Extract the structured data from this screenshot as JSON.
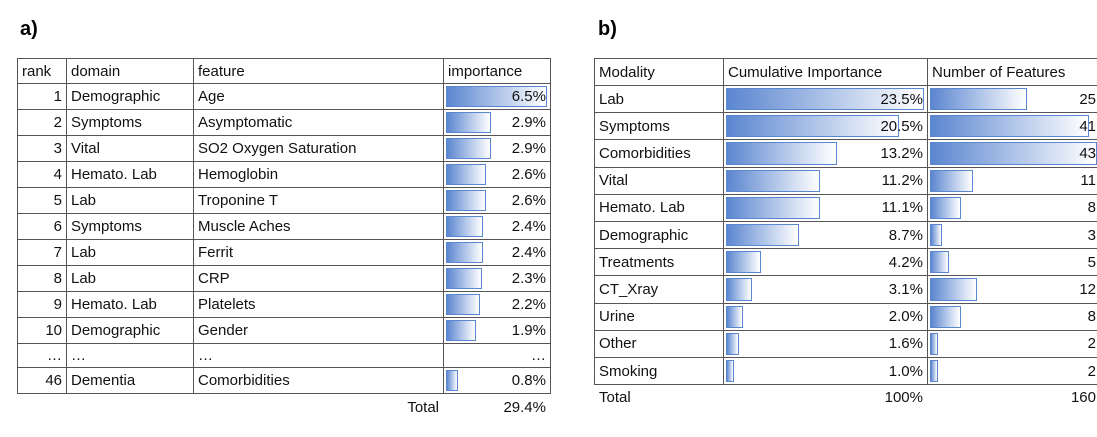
{
  "panels": [
    {
      "label": "a)",
      "table": {
        "header": [
          "rank",
          "domain",
          "feature",
          "importance"
        ],
        "rows": [
          [
            "1",
            "Demographic",
            "Age",
            "6.5%"
          ],
          [
            "2",
            "Symptoms",
            "Asymptomatic",
            "2.9%"
          ],
          [
            "3",
            "Vital",
            "SO2 Oxygen Saturation",
            "2.9%"
          ],
          [
            "4",
            "Hemato. Lab",
            "Hemoglobin",
            "2.6%"
          ],
          [
            "5",
            "Lab",
            "Troponine T",
            "2.6%"
          ],
          [
            "6",
            "Symptoms",
            "Muscle Aches",
            "2.4%"
          ],
          [
            "7",
            "Lab",
            "Ferrit",
            "2.4%"
          ],
          [
            "8",
            "Lab",
            "CRP",
            "2.3%"
          ],
          [
            "9",
            "Hemato. Lab",
            "Platelets",
            "2.2%"
          ],
          [
            "10",
            "Demographic",
            "Gender",
            "1.9%"
          ],
          [
            "…",
            "…",
            "…",
            "…"
          ],
          [
            "46",
            "Dementia",
            "Comorbidities",
            "0.8%"
          ]
        ],
        "total": {
          "label": "Total",
          "value": "29.4%"
        }
      }
    },
    {
      "label": "b)",
      "table": {
        "header": [
          "Modality",
          "Cumulative Importance",
          "Number of Features"
        ],
        "rows": [
          [
            "Lab",
            "23.5%",
            "25"
          ],
          [
            "Symptoms",
            "20.5%",
            "41"
          ],
          [
            "Comorbidities",
            "13.2%",
            "43"
          ],
          [
            "Vital",
            "11.2%",
            "11"
          ],
          [
            "Hemato. Lab",
            "11.1%",
            "8"
          ],
          [
            "Demographic",
            "8.7%",
            "3"
          ],
          [
            "Treatments",
            "4.2%",
            "5"
          ],
          [
            "CT_Xray",
            "3.1%",
            "12"
          ],
          [
            "Urine",
            "2.0%",
            "8"
          ],
          [
            "Other",
            "1.6%",
            "2"
          ],
          [
            "Smoking",
            "1.0%",
            "2"
          ]
        ],
        "total": {
          "label": "Total",
          "value": "100%",
          "count": "160"
        }
      }
    }
  ]
}
